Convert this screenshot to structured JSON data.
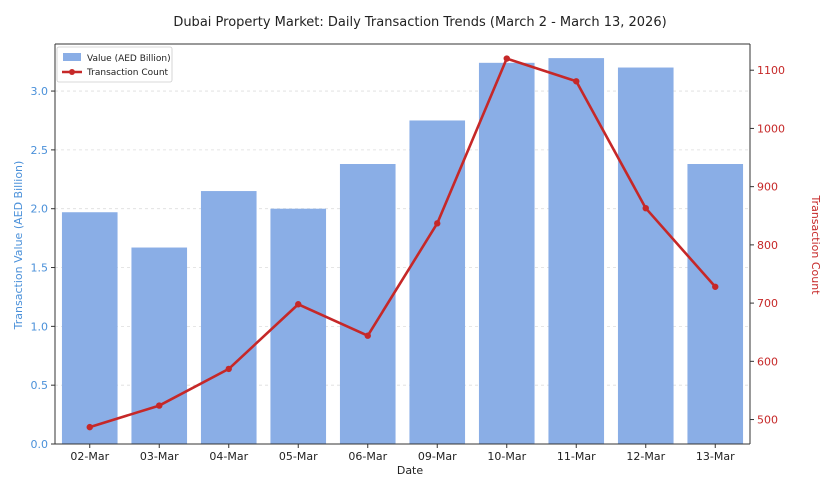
{
  "chart_data": {
    "type": "bar+line",
    "title": "Dubai Property Market: Daily Transaction Trends (March 2 - March 13, 2026)",
    "xlabel": "Date",
    "ylabel_left": "Transaction Value (AED Billion)",
    "ylabel_right": "Transaction Count",
    "categories": [
      "02-Mar",
      "03-Mar",
      "04-Mar",
      "05-Mar",
      "06-Mar",
      "09-Mar",
      "10-Mar",
      "11-Mar",
      "12-Mar",
      "13-Mar"
    ],
    "series": [
      {
        "name": "Value (AED Billion)",
        "type": "bar",
        "axis": "left",
        "color": "#8aaee6",
        "values": [
          1.97,
          1.67,
          2.15,
          2.0,
          2.38,
          2.75,
          3.24,
          3.28,
          3.2,
          2.38
        ]
      },
      {
        "name": "Transaction Count",
        "type": "line",
        "axis": "right",
        "color": "#c62828",
        "values": [
          487,
          524,
          587,
          698,
          644,
          837,
          1120,
          1081,
          863,
          728
        ]
      }
    ],
    "ylim_left": [
      0,
      3.4
    ],
    "yticks_left": [
      "0.0",
      "0.5",
      "1.0",
      "1.5",
      "2.0",
      "2.5",
      "3.0"
    ],
    "ylim_right": [
      458,
      1145
    ],
    "yticks_right": [
      "500",
      "600",
      "700",
      "800",
      "900",
      "1000",
      "1100"
    ],
    "legend_position": "top-left",
    "grid": true
  }
}
